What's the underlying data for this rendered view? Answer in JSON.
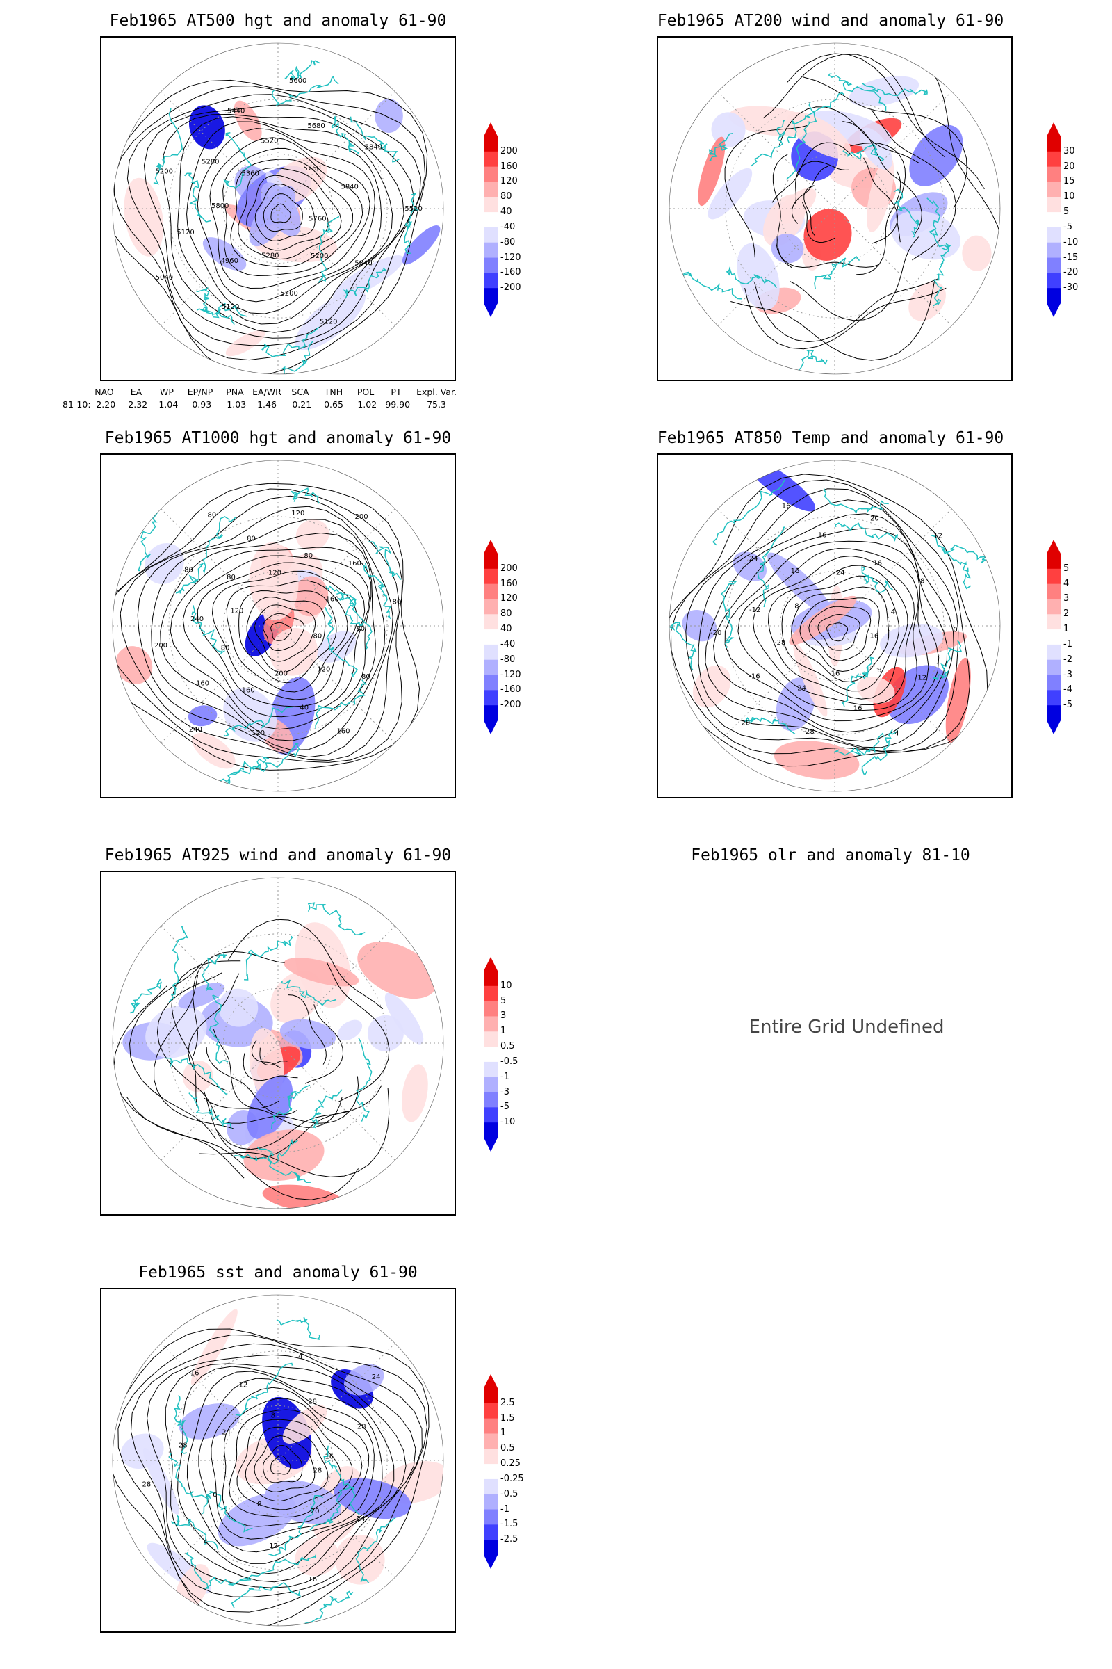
{
  "colors": {
    "frame": "#000000",
    "coast": "#20c0c0",
    "contour": "#000000",
    "pos": [
      "#ffe0e0",
      "#ffb0b0",
      "#ff8080",
      "#ff4040",
      "#e00000"
    ],
    "neg": [
      "#e0e0ff",
      "#b0b0ff",
      "#8080ff",
      "#4040ff",
      "#0000e0"
    ]
  },
  "panels": [
    {
      "id": "p500",
      "title": "Feb1965 AT500 hgt and anomaly 61-90",
      "icon": "polar-map-icon",
      "cbar": [
        "200",
        "160",
        "120",
        "80",
        "40",
        "-40",
        "-80",
        "-120",
        "-160",
        "-200"
      ],
      "contour_labels": [
        "5760",
        "5840",
        "5200",
        "5120",
        "5200",
        "5280",
        "5120",
        "4960",
        "5040",
        "5120",
        "5800",
        "5200",
        "5280",
        "5360",
        "5440",
        "5520",
        "5600",
        "5680",
        "5760",
        "5840",
        "5840",
        "5520"
      ]
    },
    {
      "id": "p200",
      "title": "Feb1965 AT200 wind and anomaly 61-90",
      "icon": "streamline-map-icon",
      "cbar": [
        "30",
        "20",
        "15",
        "10",
        "5",
        "-5",
        "-10",
        "-15",
        "-20",
        "-30"
      ],
      "contour_labels": []
    },
    {
      "id": "p1000",
      "title": "Feb1965 AT1000 hgt and anomaly 61-90",
      "icon": "polar-map-icon",
      "cbar": [
        "200",
        "160",
        "120",
        "80",
        "40",
        "-40",
        "-80",
        "-120",
        "-160",
        "-200"
      ],
      "contour_labels": [
        "80",
        "80",
        "120",
        "160",
        "40",
        "200",
        "120",
        "160",
        "240",
        "160",
        "80",
        "200",
        "240",
        "120",
        "80",
        "80",
        "80",
        "80",
        "120",
        "120",
        "80",
        "200",
        "160",
        "160",
        "80",
        "80"
      ]
    },
    {
      "id": "p850",
      "title": "Feb1965 AT850 Temp and anomaly 61-90",
      "icon": "polar-map-icon",
      "cbar": [
        "5",
        "4",
        "3",
        "2",
        "1",
        "-1",
        "-2",
        "-3",
        "-4",
        "-5"
      ],
      "contour_labels": [
        "16",
        "12",
        "8",
        "4",
        "16",
        "16",
        "-28",
        "-24",
        "-20",
        "-16",
        "-28",
        "-20",
        "-12",
        "-8",
        "24",
        "16",
        "16",
        "16",
        "24",
        "20",
        "16",
        "12",
        "8",
        "4",
        "0"
      ]
    },
    {
      "id": "p925",
      "title": "Feb1965 AT925 wind and anomaly 61-90",
      "icon": "streamline-map-icon",
      "cbar": [
        "10",
        "5",
        "3",
        "1",
        "0.5",
        "-0.5",
        "-1",
        "-3",
        "-5",
        "-10"
      ],
      "contour_labels": []
    },
    {
      "id": "polr",
      "title": "Feb1965 olr and anomaly 81-10",
      "message": "Entire Grid Undefined"
    },
    {
      "id": "psst",
      "title": "Feb1965 sst and anomaly 61-90",
      "icon": "polar-map-icon",
      "cbar": [
        "2.5",
        "1.5",
        "1",
        "0.5",
        "0.25",
        "-0.25",
        "-0.5",
        "-1",
        "-1.5",
        "-2.5"
      ],
      "contour_labels": [
        "28",
        "24",
        "20",
        "16",
        "12",
        "8",
        "4",
        "0",
        "28",
        "28",
        "24",
        "16",
        "12",
        "8",
        "4",
        "28",
        "24",
        "28",
        "16"
      ]
    }
  ],
  "indices": {
    "headers": [
      "NAO",
      "EA",
      "WP",
      "EP/NP",
      "PNA",
      "EA/WR",
      "SCA",
      "TNH",
      "POL",
      "PT",
      "Expl. Var."
    ],
    "row_label": "81-10:",
    "values": [
      "-2.20",
      "-2.32",
      "-1.04",
      "-0.93",
      "-1.03",
      "1.46",
      "-0.21",
      "0.65",
      "-1.02",
      "-99.90",
      "75.3"
    ]
  }
}
